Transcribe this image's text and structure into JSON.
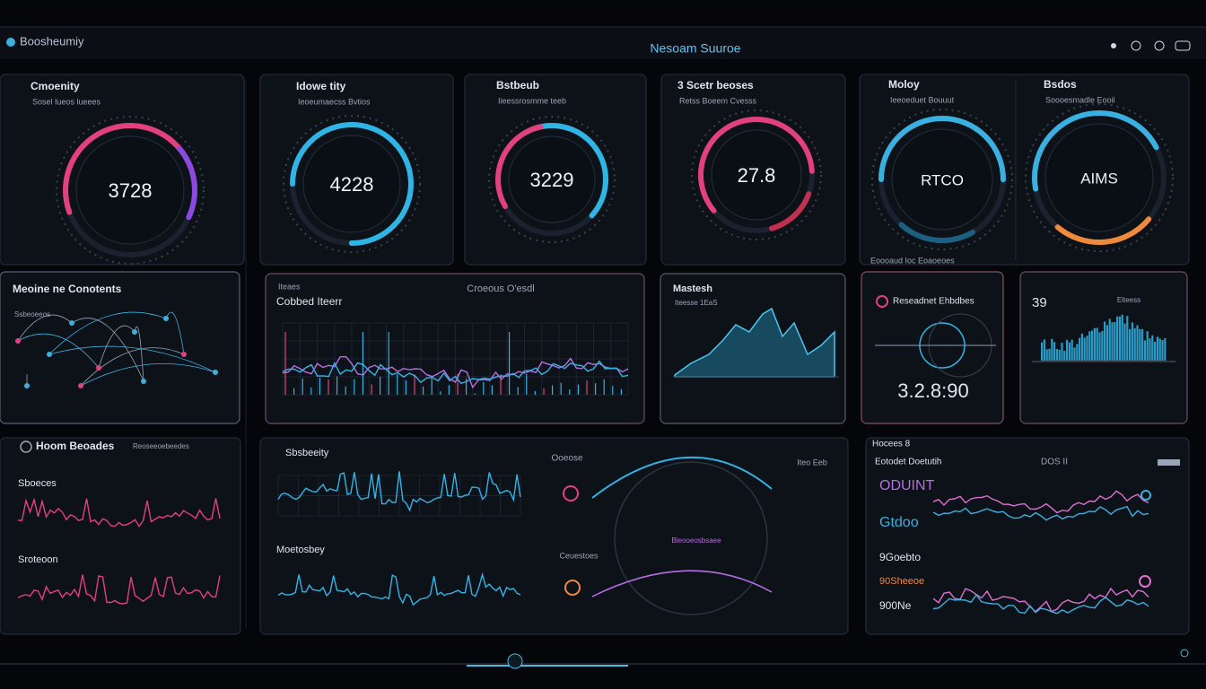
{
  "header": {
    "brand": "Boosheumiy",
    "title": "Nesoam Suuroe"
  },
  "gauges": [
    {
      "title": "Cmoenity",
      "subtitle": "Sosel Iueos lueees",
      "value": "3728"
    },
    {
      "title": "Idowe tity",
      "subtitle": "Ieoeumaecss Bvtios",
      "value": "4228"
    },
    {
      "title": "Bstbeub",
      "subtitle": "Iieessrosmme teeb",
      "value": "3229"
    },
    {
      "title": "3 Scetr beoses",
      "subtitle": "Retss Boeem Cvesss",
      "value": "27.8"
    },
    {
      "title": "Moloy",
      "subtitle": "Ieeoeduet Bouuut",
      "value": "RTCO"
    },
    {
      "title": "Bsdos",
      "subtitle": "Soooesmadle Eooil",
      "value": "AIMS"
    }
  ],
  "gauge_footer": "Eoooaud Ioc Eoaoeoes",
  "network": {
    "title": "Meoine ne Conotents",
    "label": "Ssbeoeeos"
  },
  "timeline": {
    "tag": "Iteaes",
    "title": "Cobbed Iteerr",
    "legend": "Croeous O'esdl"
  },
  "area": {
    "title": "Mastesh",
    "subtitle": "Iteesse 1EaS"
  },
  "radar": {
    "title": "Reseadnet Ehbdbes",
    "value": "3.2.8:90"
  },
  "histogram": {
    "value": "39",
    "label": "Elteess"
  },
  "signals": {
    "title": "Hoom Beoades",
    "badge": "Reoseeoebeedes",
    "rows": [
      "Sboeces",
      "Sroteoon"
    ]
  },
  "activity": {
    "title": "Sbsbeeity",
    "second": "Moetosbey",
    "orbit_top": "Ooeose",
    "orbit_bottom": "Ceuestoes",
    "orbit_center": "Bleooeosbsaee",
    "corner": "Iteo Eeb"
  },
  "flows": {
    "label": "Hocees 8",
    "title": "Eotodet Doetutih",
    "badge": "DOS II",
    "rows": [
      "ODUINT",
      "Gtdoo",
      "9Goebto",
      "90Sheeoe",
      "900Ne"
    ]
  }
}
